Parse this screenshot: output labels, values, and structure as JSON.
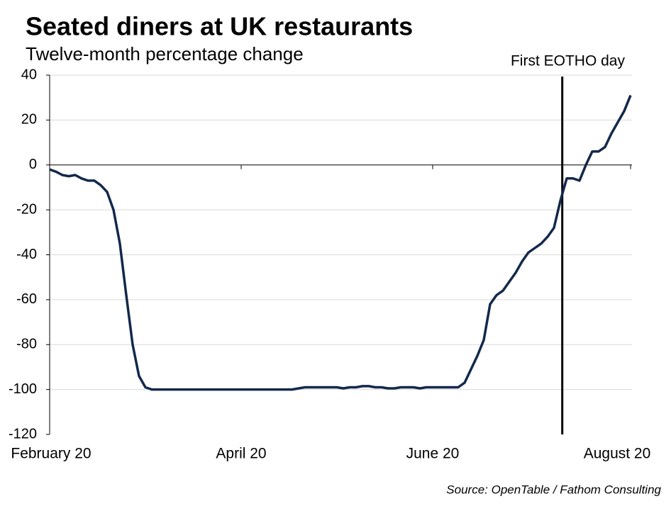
{
  "chart_data": {
    "type": "line",
    "title": "Seated diners at UK restaurants",
    "subtitle": "Twelve-month percentage change",
    "source": "Source: OpenTable / Fathom Consulting",
    "categories": [
      "February 20",
      null,
      null,
      null,
      null,
      null,
      null,
      null,
      null,
      null,
      null,
      null,
      null,
      null,
      null,
      null,
      null,
      null,
      null,
      null,
      null,
      null,
      null,
      null,
      null,
      null,
      null,
      null,
      null,
      null,
      "April 20",
      null,
      null,
      null,
      null,
      null,
      null,
      null,
      null,
      null,
      null,
      null,
      null,
      null,
      null,
      null,
      null,
      null,
      null,
      null,
      null,
      null,
      null,
      null,
      null,
      null,
      null,
      null,
      null,
      null,
      "June 20",
      null,
      null,
      null,
      null,
      null,
      null,
      null,
      null,
      null,
      null,
      null,
      null,
      null,
      null,
      null,
      null,
      null,
      null,
      null,
      null,
      null,
      null,
      null,
      null,
      null,
      null,
      null,
      null,
      null,
      null,
      "August 20"
    ],
    "series": [
      {
        "color": "#13294b",
        "values": [
          -2,
          -3,
          -4.5,
          -5,
          -4.5,
          -6,
          -7,
          -7,
          -9,
          -12,
          -20,
          -35,
          -58,
          -80,
          -94,
          -99,
          -100,
          -100,
          -100,
          -100,
          -100,
          -100,
          -100,
          -100,
          -100,
          -100,
          -100,
          -100,
          -100,
          -100,
          -100,
          -100,
          -100,
          -100,
          -100,
          -100,
          -100,
          -100,
          -100,
          -99.5,
          -99,
          -99,
          -99,
          -99,
          -99,
          -99,
          -99.5,
          -99,
          -99,
          -98.5,
          -98.5,
          -99,
          -99,
          -99.5,
          -99.5,
          -99,
          -99,
          -99,
          -99.5,
          -99,
          -99,
          -99,
          -99,
          -99,
          -99,
          -97,
          -91,
          -85,
          -78,
          -62,
          -58,
          -56,
          -52,
          -48,
          -43,
          -39,
          -37,
          -35,
          -32,
          -28,
          -16,
          -6,
          -6,
          -7,
          0,
          6,
          6,
          8,
          14,
          19,
          24,
          31
        ]
      }
    ],
    "ylim": [
      -120,
      40
    ],
    "yticks": [
      -120,
      -100,
      -80,
      -60,
      -40,
      -20,
      0,
      20,
      40
    ],
    "grid": true,
    "annotations": [
      {
        "text": "First EOTHO day",
        "x": 80.3
      }
    ]
  }
}
